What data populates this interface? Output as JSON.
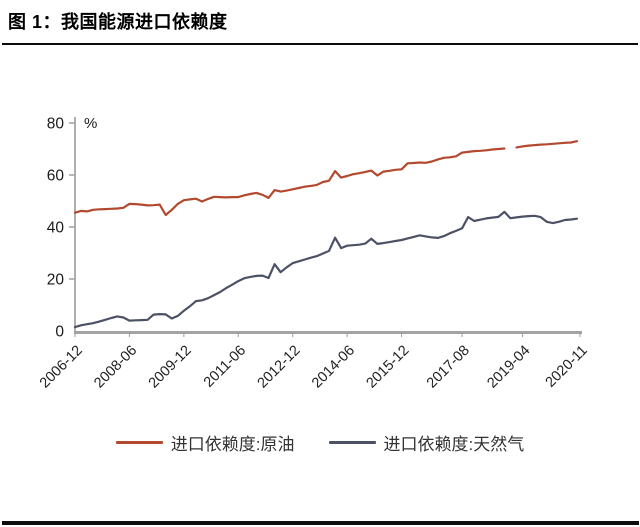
{
  "figure": {
    "title": "图 1：我国能源进口依赖度"
  },
  "chart_data": {
    "type": "line",
    "title": "图 1：我国能源进口依赖度",
    "unit_label": "%",
    "ylim": [
      0,
      80
    ],
    "y_ticks": [
      0,
      20,
      40,
      60,
      80
    ],
    "grid": false,
    "legend_position": "bottom",
    "x_axis_note": "monthly series from 2006-12 to 2020-11, values sampled every 2 months",
    "sample_interval_months": 2,
    "x_months_span": 167,
    "x_tick_labels": [
      "2006-12",
      "2008-06",
      "2009-12",
      "2011-06",
      "2012-12",
      "2014-06",
      "2015-12",
      "2017-08",
      "2019-04",
      "2020-11"
    ],
    "x_tick_months": [
      0,
      18,
      36,
      54,
      72,
      90,
      108,
      128,
      148,
      167
    ],
    "series": [
      {
        "name": "进口依赖度:原油",
        "color": "#b3492e",
        "values": [
          45.5,
          46.2,
          46.0,
          46.6,
          46.8,
          46.9,
          47.0,
          47.1,
          47.4,
          48.9,
          48.8,
          48.6,
          48.3,
          48.4,
          48.6,
          44.6,
          46.6,
          48.9,
          50.3,
          50.6,
          50.9,
          49.8,
          50.8,
          51.6,
          51.5,
          51.4,
          51.5,
          51.5,
          52.2,
          52.7,
          53.1,
          52.4,
          51.2,
          54.2,
          53.6,
          54.0,
          54.5,
          55.0,
          55.5,
          55.8,
          56.2,
          57.3,
          57.8,
          61.5,
          59.0,
          59.6,
          60.3,
          60.7,
          61.2,
          61.7,
          59.8,
          61.3,
          61.6,
          62.0,
          62.2,
          64.5,
          64.6,
          64.8,
          64.7,
          65.2,
          66.0,
          66.6,
          66.8,
          67.2,
          68.6,
          68.9,
          69.2,
          69.3,
          69.5,
          69.8,
          70.0,
          70.2,
          null,
          70.6,
          71.0,
          71.3,
          71.5,
          71.7,
          71.8,
          72.0,
          72.2,
          72.4,
          72.5,
          73.0
        ]
      },
      {
        "name": "进口依赖度:天然气",
        "color": "#4d5166",
        "values": [
          1.5,
          2.2,
          2.6,
          3.0,
          3.6,
          4.3,
          5.0,
          5.6,
          5.2,
          4.0,
          4.1,
          4.2,
          4.3,
          6.3,
          6.5,
          6.4,
          4.8,
          5.8,
          7.8,
          9.5,
          11.5,
          11.8,
          12.6,
          13.8,
          15.0,
          16.5,
          17.8,
          19.2,
          20.3,
          20.8,
          21.2,
          21.3,
          20.4,
          25.7,
          22.6,
          24.5,
          26.1,
          26.8,
          27.5,
          28.2,
          28.8,
          29.8,
          30.8,
          35.9,
          31.9,
          32.8,
          33.0,
          33.2,
          33.6,
          35.5,
          33.5,
          33.8,
          34.2,
          34.6,
          35.0,
          35.6,
          36.2,
          36.8,
          36.4,
          36.0,
          35.8,
          36.5,
          37.6,
          38.5,
          39.5,
          43.8,
          42.3,
          42.8,
          43.3,
          43.6,
          43.9,
          45.8,
          43.4,
          43.7,
          44.0,
          44.2,
          44.3,
          43.8,
          42.0,
          41.5,
          42.0,
          42.7,
          42.9,
          43.2
        ]
      }
    ]
  },
  "colors": {
    "axis": "#9b9b9b",
    "x_axis": "#a3a3a3",
    "tick_text": "#1a1a1a",
    "rule": "#0a0a0a"
  }
}
